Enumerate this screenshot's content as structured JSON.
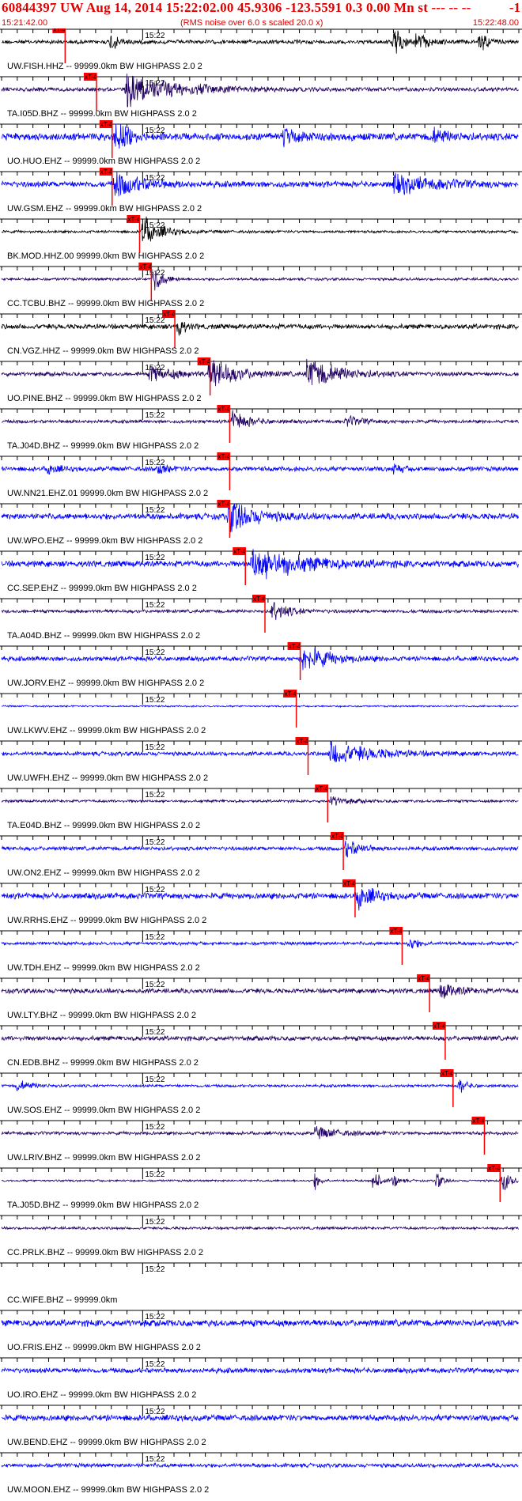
{
  "header": {
    "title": "60844397 UW Aug 14, 2014 15:22:02.00   45.9306 -123.5591  0.3 0.00 Mn st --- -- --",
    "flag": "-1",
    "start_time": "15:21:42.00",
    "rms_note": "(RMS noise over 6.0 s scaled 20.0 x)",
    "end_time": "15:22:48.00"
  },
  "pick_label": "xT-4",
  "minute_label": "15:22",
  "colors": {
    "header_red": "#e00000",
    "pick_red": "#ff0000",
    "black": "#000000",
    "blue": "#0000ff",
    "navy": "#200060"
  },
  "chart_data": {
    "type": "line",
    "x_range_seconds": [
      0,
      66
    ],
    "minute_mark_seconds": 18,
    "tick_interval_seconds": 2,
    "series": [
      {
        "name": "UW.FISH.HHZ -- 99999.0km BW  HIGHPASS  2.0  2",
        "color": "#000000",
        "pick": 7.5,
        "amp": 0.12,
        "events": [
          {
            "t": 14,
            "a": 0.7,
            "d": 0.8
          },
          {
            "t": 50,
            "a": 1.0,
            "d": 1.0
          },
          {
            "t": 53,
            "a": 0.6,
            "d": 1.2
          },
          {
            "t": 61,
            "a": 0.6,
            "d": 1.0
          }
        ]
      },
      {
        "name": "TA.I05D.BHZ -- 99999.0km BW  HIGHPASS  2.0  2",
        "color": "#200060",
        "pick": 11.5,
        "amp": 0.12,
        "events": [
          {
            "t": 16,
            "a": 1.0,
            "d": 6
          }
        ]
      },
      {
        "name": "UO.HUO.EHZ -- 99999.0km BW  HIGHPASS  2.0  2",
        "color": "#0000ff",
        "pick": 13.5,
        "amp": 0.22,
        "events": [
          {
            "t": 14.5,
            "a": 1.0,
            "d": 1.5
          },
          {
            "t": 36,
            "a": 0.45,
            "d": 2
          },
          {
            "t": 55,
            "a": 0.4,
            "d": 2
          }
        ]
      },
      {
        "name": "UW.GSM.EHZ -- 99999.0km BW  HIGHPASS  2.0  2",
        "color": "#0000ff",
        "pick": 13.5,
        "amp": 0.18,
        "events": [
          {
            "t": 14.5,
            "a": 0.8,
            "d": 3
          },
          {
            "t": 50,
            "a": 0.55,
            "d": 5
          }
        ]
      },
      {
        "name": "BK.MOD.HHZ.00 99999.0km BW  HIGHPASS  2.0  2",
        "color": "#000000",
        "pick": 17.0,
        "amp": 0.08,
        "events": [
          {
            "t": 18,
            "a": 1.0,
            "d": 2
          }
        ]
      },
      {
        "name": "CC.TCBU.BHZ -- 99999.0km BW  HIGHPASS  2.0  2",
        "color": "#200060",
        "pick": 18.5,
        "amp": 0.08,
        "events": [
          {
            "t": 19.5,
            "a": 0.9,
            "d": 1
          }
        ]
      },
      {
        "name": "CN.VGZ.HHZ -- 99999.0km BW  HIGHPASS  2.0  2",
        "color": "#000000",
        "pick": 21.5,
        "amp": 0.15,
        "events": [
          {
            "t": 22.5,
            "a": 0.8,
            "d": 0.6
          }
        ]
      },
      {
        "name": "UO.PINE.BHZ -- 99999.0km BW  HIGHPASS  2.0  2",
        "color": "#200060",
        "pick": 26.0,
        "amp": 0.12,
        "events": [
          {
            "t": 19,
            "a": 0.5,
            "d": 3
          },
          {
            "t": 26.5,
            "a": 1.0,
            "d": 3
          },
          {
            "t": 39,
            "a": 0.9,
            "d": 4
          }
        ]
      },
      {
        "name": "TA.J04D.BHZ -- 99999.0km BW  HIGHPASS  2.0  2",
        "color": "#200060",
        "pick": 28.5,
        "amp": 0.1,
        "events": [
          {
            "t": 29.5,
            "a": 0.6,
            "d": 2
          },
          {
            "t": 44,
            "a": 0.3,
            "d": 2
          }
        ]
      },
      {
        "name": "UW.NN21.EHZ.01 99999.0km BW  HIGHPASS  2.0  2",
        "color": "#0000ff",
        "pick": 28.5,
        "amp": 0.14,
        "events": [
          {
            "t": 6,
            "a": 0.35,
            "d": 1
          },
          {
            "t": 20,
            "a": 0.35,
            "d": 1
          },
          {
            "t": 50,
            "a": 0.3,
            "d": 1
          }
        ]
      },
      {
        "name": "UW.WPO.EHZ -- 99999.0km BW  HIGHPASS  2.0  2",
        "color": "#0000ff",
        "pick": 28.5,
        "amp": 0.18,
        "events": [
          {
            "t": 29,
            "a": 1.0,
            "d": 3
          }
        ]
      },
      {
        "name": "CC.SEP.EHZ -- 99999.0km BW  HIGHPASS  2.0  2",
        "color": "#0000ff",
        "pick": 30.5,
        "amp": 0.18,
        "events": [
          {
            "t": 32,
            "a": 1.0,
            "d": 6
          }
        ]
      },
      {
        "name": "TA.A04D.BHZ -- 99999.0km BW  HIGHPASS  2.0  2",
        "color": "#200060",
        "pick": 33.0,
        "amp": 0.1,
        "events": [
          {
            "t": 34.5,
            "a": 0.6,
            "d": 2
          }
        ]
      },
      {
        "name": "UW.JORV.EHZ -- 99999.0km BW  HIGHPASS  2.0  2",
        "color": "#0000ff",
        "pick": 37.5,
        "amp": 0.14,
        "events": [
          {
            "t": 38.5,
            "a": 0.8,
            "d": 3
          }
        ]
      },
      {
        "name": "UW.LKWV.EHZ -- 99999.0km BW  HIGHPASS  2.0  2",
        "color": "#0000ff",
        "pick": 37.0,
        "amp": 0.05,
        "events": []
      },
      {
        "name": "UW.UWFH.EHZ -- 99999.0km BW  HIGHPASS  2.0  2",
        "color": "#0000ff",
        "pick": 38.5,
        "amp": 0.12,
        "events": [
          {
            "t": 42,
            "a": 0.7,
            "d": 5
          }
        ]
      },
      {
        "name": "TA.E04D.BHZ -- 99999.0km BW  HIGHPASS  2.0  2",
        "color": "#200060",
        "pick": 41.0,
        "amp": 0.08,
        "events": [
          {
            "t": 42,
            "a": 0.3,
            "d": 2
          }
        ]
      },
      {
        "name": "UW.ON2.EHZ -- 99999.0km BW  HIGHPASS  2.0  2",
        "color": "#0000ff",
        "pick": 43.0,
        "amp": 0.12,
        "events": [
          {
            "t": 44,
            "a": 0.6,
            "d": 1.5
          }
        ]
      },
      {
        "name": "UW.RRHS.EHZ -- 99999.0km BW  HIGHPASS  2.0  2",
        "color": "#0000ff",
        "pick": 44.5,
        "amp": 0.18,
        "events": [
          {
            "t": 45.5,
            "a": 0.9,
            "d": 1.5
          }
        ]
      },
      {
        "name": "UW.TDH.EHZ -- 99999.0km BW  HIGHPASS  2.0  2",
        "color": "#0000ff",
        "pick": 50.5,
        "amp": 0.1,
        "events": [
          {
            "t": 52,
            "a": 0.4,
            "d": 1
          }
        ]
      },
      {
        "name": "UW.LTY.BHZ -- 99999.0km BW  HIGHPASS  2.0  2",
        "color": "#200060",
        "pick": 54.0,
        "amp": 0.14,
        "events": [
          {
            "t": 56,
            "a": 0.5,
            "d": 2
          }
        ]
      },
      {
        "name": "CN.EDB.BHZ -- 99999.0km BW  HIGHPASS  2.0  2",
        "color": "#200060",
        "pick": 56.0,
        "amp": 0.14,
        "events": []
      },
      {
        "name": "UW.SOS.EHZ -- 99999.0km BW  HIGHPASS  2.0  2",
        "color": "#0000ff",
        "pick": 57.0,
        "amp": 0.08,
        "events": [
          {
            "t": 2,
            "a": 0.3,
            "d": 2
          },
          {
            "t": 58.5,
            "a": 0.5,
            "d": 0.8
          }
        ]
      },
      {
        "name": "UW.LRIV.BHZ -- 99999.0km BW  HIGHPASS  2.0  2",
        "color": "#200060",
        "pick": 61.0,
        "amp": 0.1,
        "events": [
          {
            "t": 40,
            "a": 0.35,
            "d": 3
          }
        ]
      },
      {
        "name": "TA.J05D.BHZ -- 99999.0km BW  HIGHPASS  2.0  2",
        "color": "#200060",
        "pick": 63.0,
        "amp": 0.06,
        "events": [
          {
            "t": 40,
            "a": 0.5,
            "d": 0.6
          },
          {
            "t": 47.5,
            "a": 1.0,
            "d": 0.6
          },
          {
            "t": 50,
            "a": 0.5,
            "d": 0.6
          },
          {
            "t": 55.5,
            "a": 0.6,
            "d": 0.6
          },
          {
            "t": 64,
            "a": 0.8,
            "d": 0.8
          }
        ]
      },
      {
        "name": "CC.PRLK.BHZ -- 99999.0km BW  HIGHPASS  2.0  2",
        "color": "#200060",
        "pick": null,
        "amp": 0.08,
        "events": []
      },
      {
        "name": "CC.WIFE.BHZ -- 99999.0km",
        "color": "#0000ff",
        "pick": null,
        "amp": 0,
        "events": []
      },
      {
        "name": "UO.FRIS.EHZ -- 99999.0km BW  HIGHPASS  2.0  2",
        "color": "#0000ff",
        "pick": null,
        "amp": 0.2,
        "events": []
      },
      {
        "name": "UO.IRO.EHZ -- 99999.0km BW  HIGHPASS  2.0  2",
        "color": "#0000ff",
        "pick": null,
        "amp": 0.15,
        "events": []
      },
      {
        "name": "UW.BEND.EHZ -- 99999.0km BW  HIGHPASS  2.0  2",
        "color": "#0000ff",
        "pick": null,
        "amp": 0.18,
        "events": []
      },
      {
        "name": "UW.MOON.EHZ -- 99999.0km BW  HIGHPASS  2.0  2",
        "color": "#0000ff",
        "pick": null,
        "amp": 0.12,
        "events": []
      }
    ]
  }
}
